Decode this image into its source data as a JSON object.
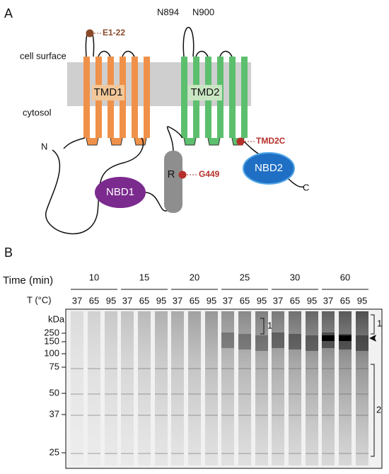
{
  "panel_a": {
    "label": "A",
    "cell_surface": "cell surface",
    "cytosol": "cytosol",
    "tmd1": "TMD1",
    "tmd2": "TMD2",
    "n_term": "N",
    "c_term": "C",
    "nbd1": "NBD1",
    "nbd2": "NBD2",
    "r_domain": "R",
    "glyco_sites": [
      "N894",
      "N900"
    ],
    "tags": {
      "e1": "E1-22",
      "g449": "G449",
      "tmd2c": "TMD2C"
    }
  },
  "panel_b": {
    "label": "B",
    "time_label": "Time (min)",
    "temp_label": "T (°C)",
    "times": [
      "10",
      "15",
      "20",
      "25",
      "30",
      "60"
    ],
    "temps": [
      "37",
      "65",
      "95"
    ],
    "mw_unit": "kDa",
    "mw_markers": [
      "250",
      "150",
      "100",
      "75",
      "50",
      "37",
      "25"
    ],
    "brackets": [
      "1",
      "1",
      "2"
    ]
  }
}
